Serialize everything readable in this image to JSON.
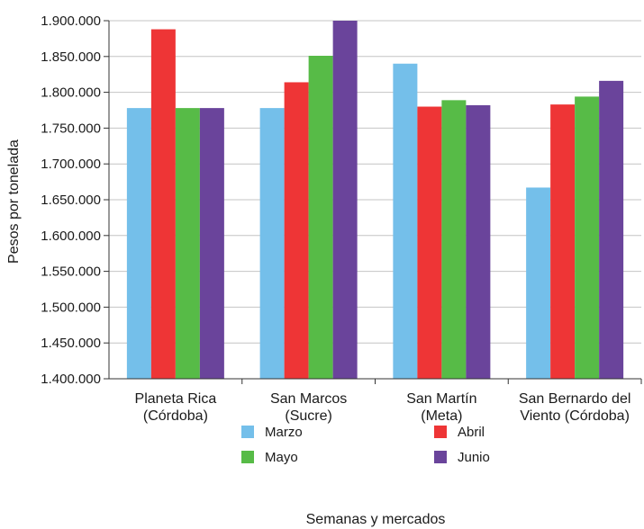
{
  "chart_data": {
    "type": "bar",
    "title": "",
    "xlabel": "Semanas y mercados",
    "ylabel": "Pesos por tonelada",
    "ylim": [
      1400000,
      1900000
    ],
    "yticks": [
      "1.400.000",
      "1.450.000",
      "1.500.000",
      "1.550.000",
      "1.600.000",
      "1.650.000",
      "1.700.000",
      "1.750.000",
      "1.800.000",
      "1.850.000",
      "1.900.000"
    ],
    "grid": true,
    "legend_position": "bottom",
    "categories": [
      [
        "Planeta Rica",
        "(Córdoba)"
      ],
      [
        "San Marcos",
        "(Sucre)"
      ],
      [
        "San Martín",
        "(Meta)"
      ],
      [
        "San Bernardo del",
        "Viento (Córdoba)"
      ]
    ],
    "series": [
      {
        "name": "Marzo",
        "color": "#74bfea",
        "values": [
          1778000,
          1778000,
          1840000,
          1667000
        ]
      },
      {
        "name": "Abril",
        "color": "#ee3536",
        "values": [
          1888000,
          1814000,
          1780000,
          1783000
        ]
      },
      {
        "name": "Mayo",
        "color": "#57bb47",
        "values": [
          1778000,
          1851000,
          1789000,
          1794000
        ]
      },
      {
        "name": "Junio",
        "color": "#6a449b",
        "values": [
          1778000,
          1900000,
          1782000,
          1816000
        ]
      }
    ]
  }
}
